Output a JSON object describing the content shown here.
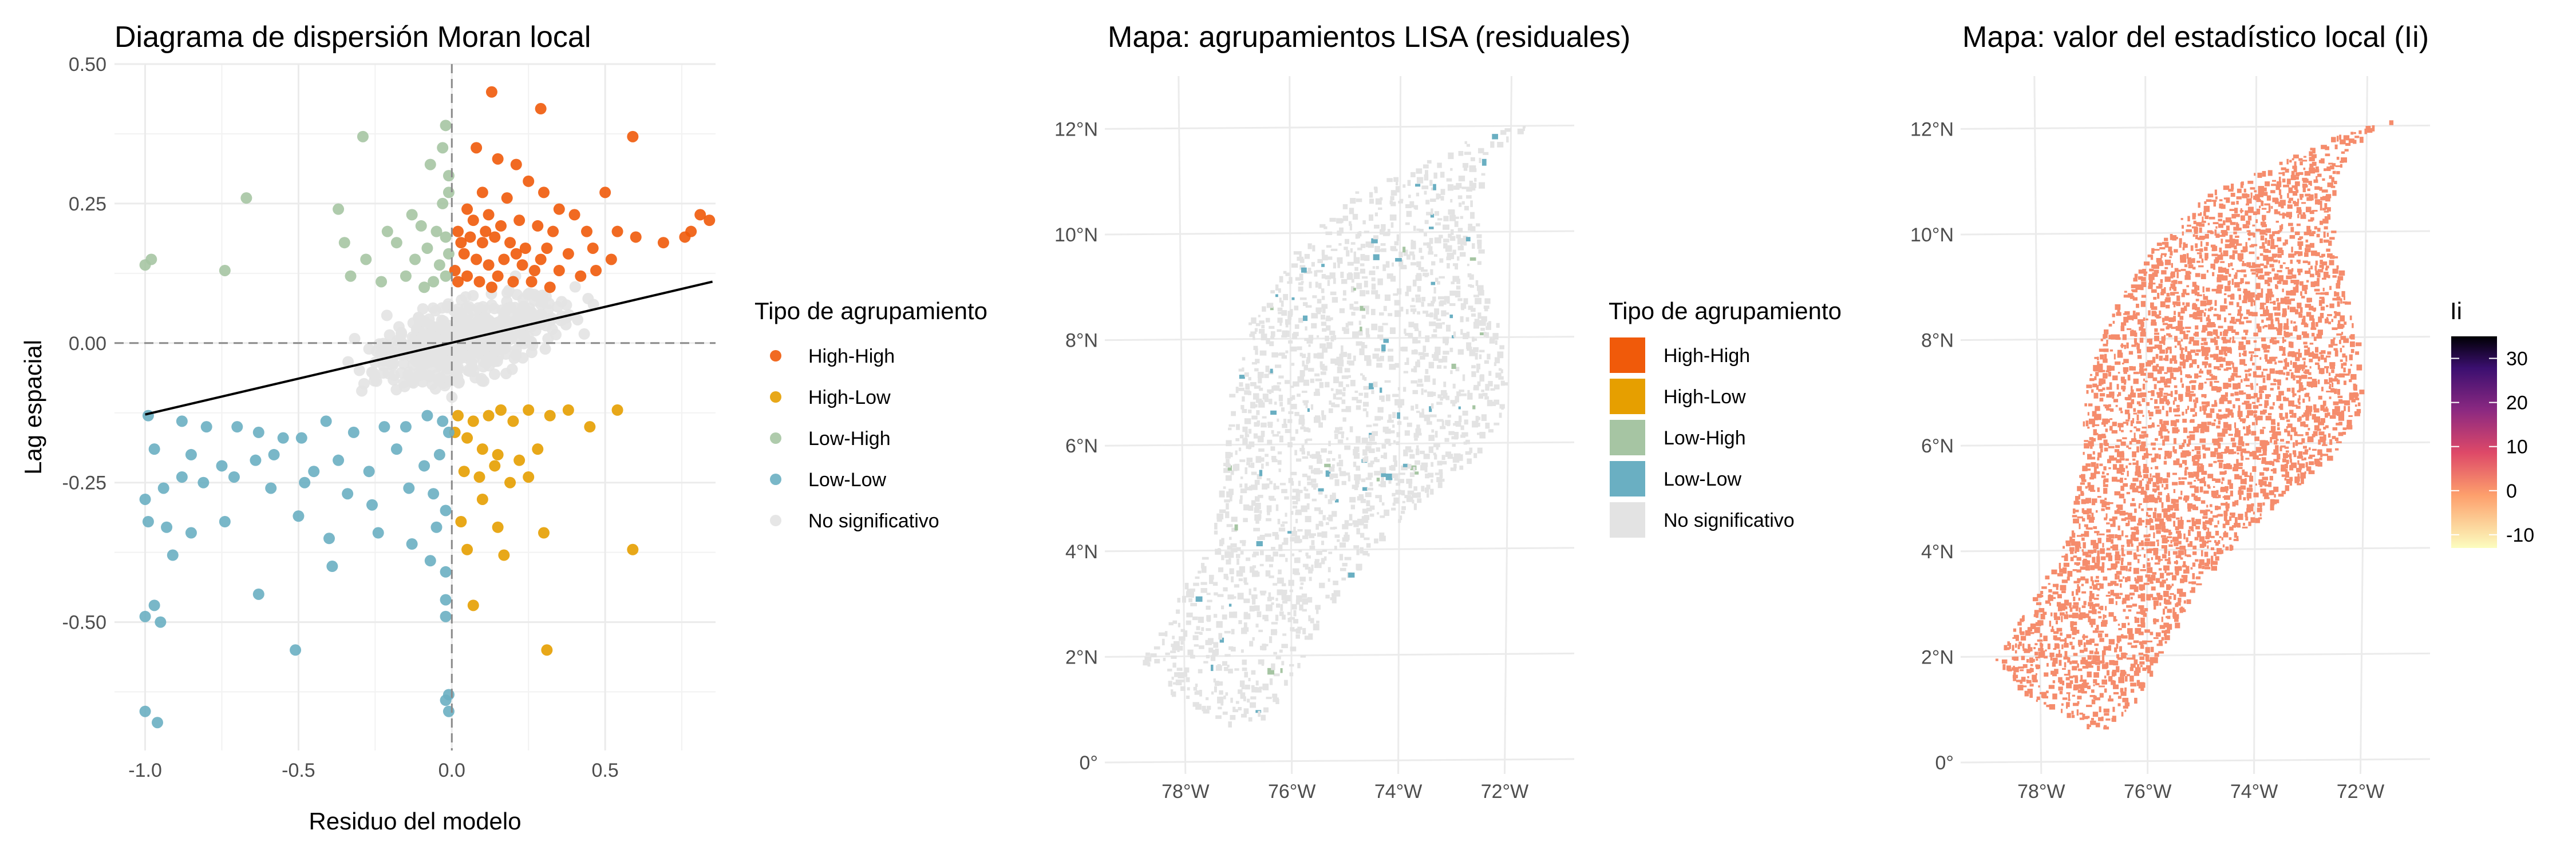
{
  "colors": {
    "high_high": "#F05A0A",
    "high_low": "#E69F00",
    "low_high": "#A6C5A3",
    "low_low": "#6AAFC2",
    "no_sig": "#E3E3E3",
    "fit_line": "#000000",
    "grid": "#EBEBEB"
  },
  "chart_data": [
    {
      "type": "scatter",
      "title": "Diagrama de dispersión Moran local",
      "xlabel": "Residuo del modelo",
      "ylabel": "Lag espacial",
      "xlim": [
        -1.1,
        0.86
      ],
      "ylim": [
        -0.73,
        0.5
      ],
      "x_ticks": [
        -1.0,
        -0.5,
        0.0,
        0.5
      ],
      "x_tick_labels": [
        "-1.0",
        "-0.5",
        "0.0",
        "0.5"
      ],
      "y_ticks": [
        -0.5,
        -0.25,
        0.0,
        0.25,
        0.5
      ],
      "y_tick_labels": [
        "-0.50",
        "-0.25",
        "0.00",
        "0.25",
        "0.50"
      ],
      "reference_lines": {
        "x": 0,
        "y": 0,
        "style": "dashed"
      },
      "fit_line": {
        "x": [
          -1.0,
          0.85
        ],
        "y": [
          -0.128,
          0.11
        ]
      },
      "series": [
        {
          "name": "High-High",
          "points": [
            [
              0.13,
              0.45
            ],
            [
              0.29,
              0.42
            ],
            [
              0.59,
              0.37
            ],
            [
              0.08,
              0.35
            ],
            [
              0.15,
              0.33
            ],
            [
              0.21,
              0.32
            ],
            [
              0.25,
              0.29
            ],
            [
              0.1,
              0.27
            ],
            [
              0.18,
              0.26
            ],
            [
              0.3,
              0.27
            ],
            [
              0.35,
              0.24
            ],
            [
              0.4,
              0.23
            ],
            [
              0.5,
              0.27
            ],
            [
              0.05,
              0.24
            ],
            [
              0.12,
              0.23
            ],
            [
              0.22,
              0.22
            ],
            [
              0.28,
              0.21
            ],
            [
              0.33,
              0.2
            ],
            [
              0.44,
              0.2
            ],
            [
              0.54,
              0.2
            ],
            [
              0.6,
              0.19
            ],
            [
              0.69,
              0.18
            ],
            [
              0.76,
              0.19
            ],
            [
              0.81,
              0.23
            ],
            [
              0.84,
              0.22
            ],
            [
              0.78,
              0.2
            ],
            [
              0.02,
              0.2
            ],
            [
              0.06,
              0.19
            ],
            [
              0.1,
              0.18
            ],
            [
              0.14,
              0.19
            ],
            [
              0.19,
              0.18
            ],
            [
              0.24,
              0.17
            ],
            [
              0.31,
              0.17
            ],
            [
              0.38,
              0.16
            ],
            [
              0.46,
              0.17
            ],
            [
              0.52,
              0.15
            ],
            [
              0.04,
              0.16
            ],
            [
              0.08,
              0.15
            ],
            [
              0.12,
              0.14
            ],
            [
              0.17,
              0.15
            ],
            [
              0.23,
              0.14
            ],
            [
              0.27,
              0.13
            ],
            [
              0.35,
              0.13
            ],
            [
              0.42,
              0.12
            ],
            [
              0.47,
              0.13
            ],
            [
              0.01,
              0.13
            ],
            [
              0.05,
              0.12
            ],
            [
              0.09,
              0.11
            ],
            [
              0.15,
              0.12
            ],
            [
              0.2,
              0.11
            ],
            [
              0.26,
              0.11
            ],
            [
              0.32,
              0.1
            ],
            [
              0.11,
              0.2
            ],
            [
              0.07,
              0.22
            ],
            [
              0.03,
              0.18
            ],
            [
              0.16,
              0.21
            ],
            [
              0.21,
              0.16
            ],
            [
              0.29,
              0.15
            ],
            [
              0.02,
              0.11
            ],
            [
              0.13,
              0.1
            ]
          ]
        },
        {
          "name": "High-Low",
          "points": [
            [
              0.02,
              -0.13
            ],
            [
              0.07,
              -0.14
            ],
            [
              0.12,
              -0.13
            ],
            [
              0.16,
              -0.12
            ],
            [
              0.2,
              -0.14
            ],
            [
              0.25,
              -0.12
            ],
            [
              0.32,
              -0.13
            ],
            [
              0.38,
              -0.12
            ],
            [
              0.45,
              -0.15
            ],
            [
              0.54,
              -0.12
            ],
            [
              0.05,
              -0.17
            ],
            [
              0.1,
              -0.19
            ],
            [
              0.15,
              -0.2
            ],
            [
              0.22,
              -0.21
            ],
            [
              0.28,
              -0.19
            ],
            [
              0.04,
              -0.23
            ],
            [
              0.09,
              -0.24
            ],
            [
              0.14,
              -0.22
            ],
            [
              0.19,
              -0.25
            ],
            [
              0.1,
              -0.28
            ],
            [
              0.03,
              -0.32
            ],
            [
              0.15,
              -0.33
            ],
            [
              0.3,
              -0.34
            ],
            [
              0.05,
              -0.37
            ],
            [
              0.17,
              -0.38
            ],
            [
              0.59,
              -0.37
            ],
            [
              0.07,
              -0.47
            ],
            [
              0.31,
              -0.55
            ],
            [
              0.01,
              -0.16
            ],
            [
              0.25,
              -0.24
            ]
          ]
        },
        {
          "name": "Low-High",
          "points": [
            [
              -0.02,
              0.39
            ],
            [
              -0.29,
              0.37
            ],
            [
              -0.03,
              0.35
            ],
            [
              -0.07,
              0.32
            ],
            [
              -0.01,
              0.3
            ],
            [
              -0.67,
              0.26
            ],
            [
              -0.37,
              0.24
            ],
            [
              -0.13,
              0.23
            ],
            [
              -0.03,
              0.25
            ],
            [
              -0.21,
              0.2
            ],
            [
              -0.1,
              0.21
            ],
            [
              -0.05,
              0.2
            ],
            [
              -0.02,
              0.19
            ],
            [
              -0.35,
              0.18
            ],
            [
              -0.18,
              0.18
            ],
            [
              -0.08,
              0.17
            ],
            [
              -0.01,
              0.16
            ],
            [
              -0.28,
              0.15
            ],
            [
              -0.12,
              0.15
            ],
            [
              -0.04,
              0.14
            ],
            [
              -1.0,
              0.14
            ],
            [
              -0.98,
              0.15
            ],
            [
              -0.74,
              0.13
            ],
            [
              -0.33,
              0.12
            ],
            [
              -0.23,
              0.11
            ],
            [
              -0.06,
              0.11
            ],
            [
              -0.02,
              0.12
            ],
            [
              -0.15,
              0.12
            ],
            [
              -0.09,
              0.1
            ],
            [
              -0.01,
              0.27
            ]
          ]
        },
        {
          "name": "Low-Low",
          "points": [
            [
              -0.99,
              -0.13
            ],
            [
              -0.88,
              -0.14
            ],
            [
              -0.8,
              -0.15
            ],
            [
              -0.7,
              -0.15
            ],
            [
              -0.63,
              -0.16
            ],
            [
              -0.55,
              -0.17
            ],
            [
              -0.49,
              -0.17
            ],
            [
              -0.41,
              -0.14
            ],
            [
              -0.32,
              -0.16
            ],
            [
              -0.22,
              -0.15
            ],
            [
              -0.15,
              -0.15
            ],
            [
              -0.08,
              -0.13
            ],
            [
              -0.03,
              -0.14
            ],
            [
              -0.01,
              -0.16
            ],
            [
              -0.97,
              -0.19
            ],
            [
              -0.85,
              -0.2
            ],
            [
              -0.75,
              -0.22
            ],
            [
              -0.64,
              -0.21
            ],
            [
              -0.58,
              -0.2
            ],
            [
              -0.45,
              -0.23
            ],
            [
              -0.37,
              -0.21
            ],
            [
              -0.27,
              -0.23
            ],
            [
              -0.18,
              -0.19
            ],
            [
              -0.09,
              -0.22
            ],
            [
              -0.04,
              -0.2
            ],
            [
              -1.0,
              -0.28
            ],
            [
              -0.94,
              -0.26
            ],
            [
              -0.88,
              -0.24
            ],
            [
              -0.81,
              -0.25
            ],
            [
              -0.71,
              -0.24
            ],
            [
              -0.59,
              -0.26
            ],
            [
              -0.48,
              -0.25
            ],
            [
              -0.34,
              -0.27
            ],
            [
              -0.26,
              -0.29
            ],
            [
              -0.14,
              -0.26
            ],
            [
              -0.06,
              -0.27
            ],
            [
              -0.02,
              -0.3
            ],
            [
              -0.99,
              -0.32
            ],
            [
              -0.93,
              -0.33
            ],
            [
              -0.85,
              -0.34
            ],
            [
              -0.74,
              -0.32
            ],
            [
              -0.5,
              -0.31
            ],
            [
              -0.4,
              -0.35
            ],
            [
              -0.24,
              -0.34
            ],
            [
              -0.13,
              -0.36
            ],
            [
              -0.05,
              -0.33
            ],
            [
              -0.91,
              -0.38
            ],
            [
              -0.39,
              -0.4
            ],
            [
              -0.07,
              -0.39
            ],
            [
              -0.02,
              -0.41
            ],
            [
              -0.63,
              -0.45
            ],
            [
              -0.02,
              -0.46
            ],
            [
              -1.0,
              -0.49
            ],
            [
              -0.97,
              -0.47
            ],
            [
              -0.95,
              -0.5
            ],
            [
              -0.51,
              -0.55
            ],
            [
              -0.02,
              -0.49
            ],
            [
              -0.01,
              -0.63
            ],
            [
              -0.02,
              -0.64
            ],
            [
              -1.0,
              -0.66
            ],
            [
              -0.96,
              -0.68
            ],
            [
              -0.01,
              -0.66
            ]
          ]
        },
        {
          "name": "No significativo",
          "points": []
        }
      ]
    },
    {
      "type": "choropleth-map",
      "title": "Mapa: agrupamientos LISA (residuales)",
      "x_ticks": [
        -78,
        -76,
        -74,
        -72
      ],
      "x_tick_labels": [
        "78°W",
        "76°W",
        "74°W",
        "72°W"
      ],
      "y_ticks": [
        0,
        2,
        4,
        6,
        8,
        10,
        12
      ],
      "y_tick_labels": [
        "0°",
        "2°N",
        "4°N",
        "6°N",
        "8°N",
        "10°N",
        "12°N"
      ],
      "legend": {
        "title": "Tipo de agrupamiento",
        "items": [
          "High-High",
          "High-Low",
          "Low-High",
          "Low-Low",
          "No significativo"
        ]
      }
    },
    {
      "type": "choropleth-map",
      "title": "Mapa: valor del estadístico local (Ii)",
      "x_ticks": [
        -78,
        -76,
        -74,
        -72
      ],
      "x_tick_labels": [
        "78°W",
        "76°W",
        "74°W",
        "72°W"
      ],
      "y_ticks": [
        0,
        2,
        4,
        6,
        8,
        10,
        12
      ],
      "y_tick_labels": [
        "0°",
        "2°N",
        "4°N",
        "6°N",
        "8°N",
        "10°N",
        "12°N"
      ],
      "colorbar": {
        "title": "Ii",
        "range": [
          -13,
          35
        ],
        "ticks": [
          -10,
          0,
          10,
          20,
          30
        ],
        "tick_labels": [
          "-10",
          "0",
          "10",
          "20",
          "30"
        ],
        "colors": [
          "#FCFDBF",
          "#FD9F6C",
          "#DE4968",
          "#8C2981",
          "#3B0F70",
          "#000004"
        ]
      }
    }
  ],
  "legend_scatter": {
    "title": "Tipo de agrupamiento",
    "items": [
      "High-High",
      "High-Low",
      "Low-High",
      "Low-Low",
      "No significativo"
    ]
  }
}
